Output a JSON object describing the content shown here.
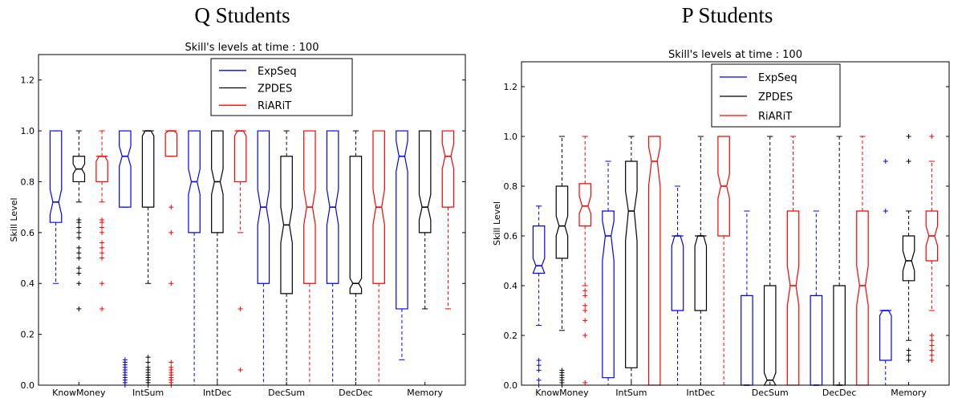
{
  "chart_data": [
    {
      "type": "box",
      "title": "Q Students",
      "subtitle": "Skill's levels at time : 100",
      "xlabel": "",
      "ylabel": "Skill Level",
      "ylim": [
        0,
        1.3
      ],
      "yticks": [
        "0.0",
        "0.2",
        "0.4",
        "0.6",
        "0.8",
        "1.0",
        "1.2"
      ],
      "categories": [
        "KnowMoney",
        "IntSum",
        "IntDec",
        "DecSum",
        "DecDec",
        "Memory"
      ],
      "legend": {
        "placement": "top-center",
        "entries": [
          "ExpSeq",
          "ZPDES",
          "RiARiT"
        ]
      },
      "colors": {
        "ExpSeq": "#0000ff",
        "ZPDES": "#000000",
        "RiARiT": "#ff0000"
      },
      "series": [
        {
          "name": "ExpSeq",
          "boxes": [
            {
              "whislo": 0.4,
              "q1": 0.64,
              "med": 0.72,
              "q3": 1.0,
              "whishi": 1.0,
              "notchlo": 0.67,
              "notchhi": 0.77,
              "fliers": []
            },
            {
              "whislo": 0.7,
              "q1": 0.7,
              "med": 0.9,
              "q3": 1.0,
              "whishi": 1.0,
              "notchlo": 0.86,
              "notchhi": 0.94,
              "fliers": [
                0.0,
                0.01,
                0.02,
                0.03,
                0.04,
                0.05,
                0.06,
                0.07,
                0.08,
                0.09,
                0.1
              ]
            },
            {
              "whislo": 0.0,
              "q1": 0.6,
              "med": 0.8,
              "q3": 1.0,
              "whishi": 1.0,
              "notchlo": 0.75,
              "notchhi": 0.85,
              "fliers": []
            },
            {
              "whislo": 0.0,
              "q1": 0.4,
              "med": 0.7,
              "q3": 1.0,
              "whishi": 1.0,
              "notchlo": 0.63,
              "notchhi": 0.77,
              "fliers": []
            },
            {
              "whislo": 0.0,
              "q1": 0.4,
              "med": 0.7,
              "q3": 1.0,
              "whishi": 1.0,
              "notchlo": 0.63,
              "notchhi": 0.77,
              "fliers": []
            },
            {
              "whislo": 0.1,
              "q1": 0.3,
              "med": 0.9,
              "q3": 1.0,
              "whishi": 1.0,
              "notchlo": 0.84,
              "notchhi": 0.96,
              "fliers": []
            }
          ]
        },
        {
          "name": "ZPDES",
          "boxes": [
            {
              "whislo": 0.72,
              "q1": 0.8,
              "med": 0.85,
              "q3": 0.9,
              "whishi": 1.0,
              "notchlo": 0.83,
              "notchhi": 0.87,
              "fliers": [
                0.3,
                0.4,
                0.44,
                0.46,
                0.5,
                0.52,
                0.54,
                0.58,
                0.6,
                0.62,
                0.64,
                0.65
              ]
            },
            {
              "whislo": 0.4,
              "q1": 0.7,
              "med": 1.0,
              "q3": 1.0,
              "whishi": 1.0,
              "notchlo": 0.98,
              "notchhi": 1.0,
              "fliers": [
                0.0,
                0.01,
                0.02,
                0.03,
                0.04,
                0.05,
                0.06,
                0.07,
                0.09,
                0.11
              ]
            },
            {
              "whislo": 0.0,
              "q1": 0.6,
              "med": 0.8,
              "q3": 1.0,
              "whishi": 1.0,
              "notchlo": 0.75,
              "notchhi": 0.85,
              "fliers": []
            },
            {
              "whislo": 0.0,
              "q1": 0.36,
              "med": 0.63,
              "q3": 0.9,
              "whishi": 1.0,
              "notchlo": 0.56,
              "notchhi": 0.7,
              "fliers": []
            },
            {
              "whislo": 0.0,
              "q1": 0.36,
              "med": 0.4,
              "q3": 0.9,
              "whishi": 1.0,
              "notchlo": 0.38,
              "notchhi": 0.42,
              "fliers": []
            },
            {
              "whislo": 0.3,
              "q1": 0.6,
              "med": 0.7,
              "q3": 1.0,
              "whishi": 1.0,
              "notchlo": 0.65,
              "notchhi": 0.75,
              "fliers": []
            }
          ]
        },
        {
          "name": "RiARiT",
          "boxes": [
            {
              "whislo": 0.72,
              "q1": 0.8,
              "med": 0.9,
              "q3": 0.9,
              "whishi": 1.0,
              "notchlo": 0.88,
              "notchhi": 0.9,
              "fliers": [
                0.3,
                0.4,
                0.5,
                0.52,
                0.54,
                0.56,
                0.6,
                0.62,
                0.64,
                0.65
              ]
            },
            {
              "whislo": 0.9,
              "q1": 0.9,
              "med": 1.0,
              "q3": 1.0,
              "whishi": 1.0,
              "notchlo": 0.99,
              "notchhi": 1.0,
              "fliers": [
                0.0,
                0.01,
                0.02,
                0.03,
                0.04,
                0.05,
                0.06,
                0.07,
                0.09,
                0.4,
                0.6,
                0.7
              ]
            },
            {
              "whislo": 0.6,
              "q1": 0.8,
              "med": 1.0,
              "q3": 1.0,
              "whishi": 1.0,
              "notchlo": 0.98,
              "notchhi": 1.0,
              "fliers": [
                0.06,
                0.3
              ]
            },
            {
              "whislo": 0.0,
              "q1": 0.4,
              "med": 0.7,
              "q3": 1.0,
              "whishi": 1.0,
              "notchlo": 0.63,
              "notchhi": 0.77,
              "fliers": []
            },
            {
              "whislo": 0.0,
              "q1": 0.4,
              "med": 0.7,
              "q3": 1.0,
              "whishi": 1.0,
              "notchlo": 0.63,
              "notchhi": 0.77,
              "fliers": []
            },
            {
              "whislo": 0.3,
              "q1": 0.7,
              "med": 0.9,
              "q3": 1.0,
              "whishi": 1.0,
              "notchlo": 0.85,
              "notchhi": 0.95,
              "fliers": []
            }
          ]
        }
      ]
    },
    {
      "type": "box",
      "title": "P Students",
      "subtitle": "Skill's levels at time : 100",
      "xlabel": "",
      "ylabel": "Skill Level",
      "ylim": [
        0,
        1.3
      ],
      "yticks": [
        "0.0",
        "0.2",
        "0.4",
        "0.6",
        "0.8",
        "1.0",
        "1.2"
      ],
      "categories": [
        "KnowMoney",
        "IntSum",
        "IntDec",
        "DecSum",
        "DecDec",
        "Memory"
      ],
      "legend": {
        "placement": "top-center",
        "entries": [
          "ExpSeq",
          "ZPDES",
          "RiARiT"
        ]
      },
      "colors": {
        "ExpSeq": "#0000ff",
        "ZPDES": "#000000",
        "RiARiT": "#ff0000"
      },
      "series": [
        {
          "name": "ExpSeq",
          "boxes": [
            {
              "whislo": 0.24,
              "q1": 0.45,
              "med": 0.48,
              "q3": 0.64,
              "whishi": 0.72,
              "notchlo": 0.45,
              "notchhi": 0.51,
              "fliers": [
                0.0,
                0.02,
                0.06,
                0.08,
                0.1
              ]
            },
            {
              "whislo": 0.0,
              "q1": 0.03,
              "med": 0.6,
              "q3": 0.7,
              "whishi": 0.9,
              "notchlo": 0.5,
              "notchhi": 0.66,
              "fliers": []
            },
            {
              "whislo": 0.0,
              "q1": 0.3,
              "med": 0.6,
              "q3": 0.6,
              "whishi": 0.8,
              "notchlo": 0.56,
              "notchhi": 0.6,
              "fliers": []
            },
            {
              "whislo": 0.0,
              "q1": 0.0,
              "med": 0.0,
              "q3": 0.36,
              "whishi": 0.7,
              "notchlo": 0.0,
              "notchhi": 0.0,
              "fliers": []
            },
            {
              "whislo": 0.0,
              "q1": 0.0,
              "med": 0.0,
              "q3": 0.36,
              "whishi": 0.7,
              "notchlo": 0.0,
              "notchhi": 0.0,
              "fliers": []
            },
            {
              "whislo": 0.0,
              "q1": 0.1,
              "med": 0.3,
              "q3": 0.3,
              "whishi": 0.3,
              "notchlo": 0.28,
              "notchhi": 0.3,
              "fliers": [
                0.7,
                0.9
              ]
            }
          ]
        },
        {
          "name": "ZPDES",
          "boxes": [
            {
              "whislo": 0.22,
              "q1": 0.51,
              "med": 0.64,
              "q3": 0.8,
              "whishi": 1.0,
              "notchlo": 0.6,
              "notchhi": 0.68,
              "fliers": [
                0.0,
                0.01,
                0.02,
                0.03,
                0.04,
                0.05,
                0.06
              ]
            },
            {
              "whislo": 0.0,
              "q1": 0.07,
              "med": 0.7,
              "q3": 0.9,
              "whishi": 1.0,
              "notchlo": 0.58,
              "notchhi": 0.78,
              "fliers": []
            },
            {
              "whislo": 0.0,
              "q1": 0.3,
              "med": 0.6,
              "q3": 0.6,
              "whishi": 1.0,
              "notchlo": 0.56,
              "notchhi": 0.6,
              "fliers": []
            },
            {
              "whislo": 0.0,
              "q1": 0.0,
              "med": 0.02,
              "q3": 0.4,
              "whishi": 1.0,
              "notchlo": 0.0,
              "notchhi": 0.05,
              "fliers": []
            },
            {
              "whislo": 0.0,
              "q1": 0.0,
              "med": 0.0,
              "q3": 0.4,
              "whishi": 1.0,
              "notchlo": 0.0,
              "notchhi": 0.0,
              "fliers": []
            },
            {
              "whislo": 0.18,
              "q1": 0.42,
              "med": 0.5,
              "q3": 0.6,
              "whishi": 0.7,
              "notchlo": 0.46,
              "notchhi": 0.54,
              "fliers": [
                0.1,
                0.12,
                0.14,
                0.9,
                1.0
              ]
            }
          ]
        },
        {
          "name": "RiARiT",
          "boxes": [
            {
              "whislo": 0.4,
              "q1": 0.64,
              "med": 0.72,
              "q3": 0.81,
              "whishi": 1.0,
              "notchlo": 0.69,
              "notchhi": 0.76,
              "fliers": [
                0.01,
                0.2,
                0.26,
                0.3,
                0.32,
                0.36,
                0.38
              ]
            },
            {
              "whislo": 0.0,
              "q1": 0.0,
              "med": 0.9,
              "q3": 1.0,
              "whishi": 1.0,
              "notchlo": 0.8,
              "notchhi": 0.96,
              "fliers": []
            },
            {
              "whislo": 0.0,
              "q1": 0.6,
              "med": 0.8,
              "q3": 1.0,
              "whishi": 1.0,
              "notchlo": 0.75,
              "notchhi": 0.85,
              "fliers": []
            },
            {
              "whislo": 0.0,
              "q1": 0.0,
              "med": 0.4,
              "q3": 0.7,
              "whishi": 1.0,
              "notchlo": 0.32,
              "notchhi": 0.48,
              "fliers": []
            },
            {
              "whislo": 0.0,
              "q1": 0.0,
              "med": 0.4,
              "q3": 0.7,
              "whishi": 1.0,
              "notchlo": 0.32,
              "notchhi": 0.48,
              "fliers": []
            },
            {
              "whislo": 0.3,
              "q1": 0.5,
              "med": 0.6,
              "q3": 0.7,
              "whishi": 0.9,
              "notchlo": 0.56,
              "notchhi": 0.64,
              "fliers": [
                0.1,
                0.12,
                0.14,
                0.16,
                0.18,
                0.2,
                1.0
              ]
            }
          ]
        }
      ]
    }
  ]
}
